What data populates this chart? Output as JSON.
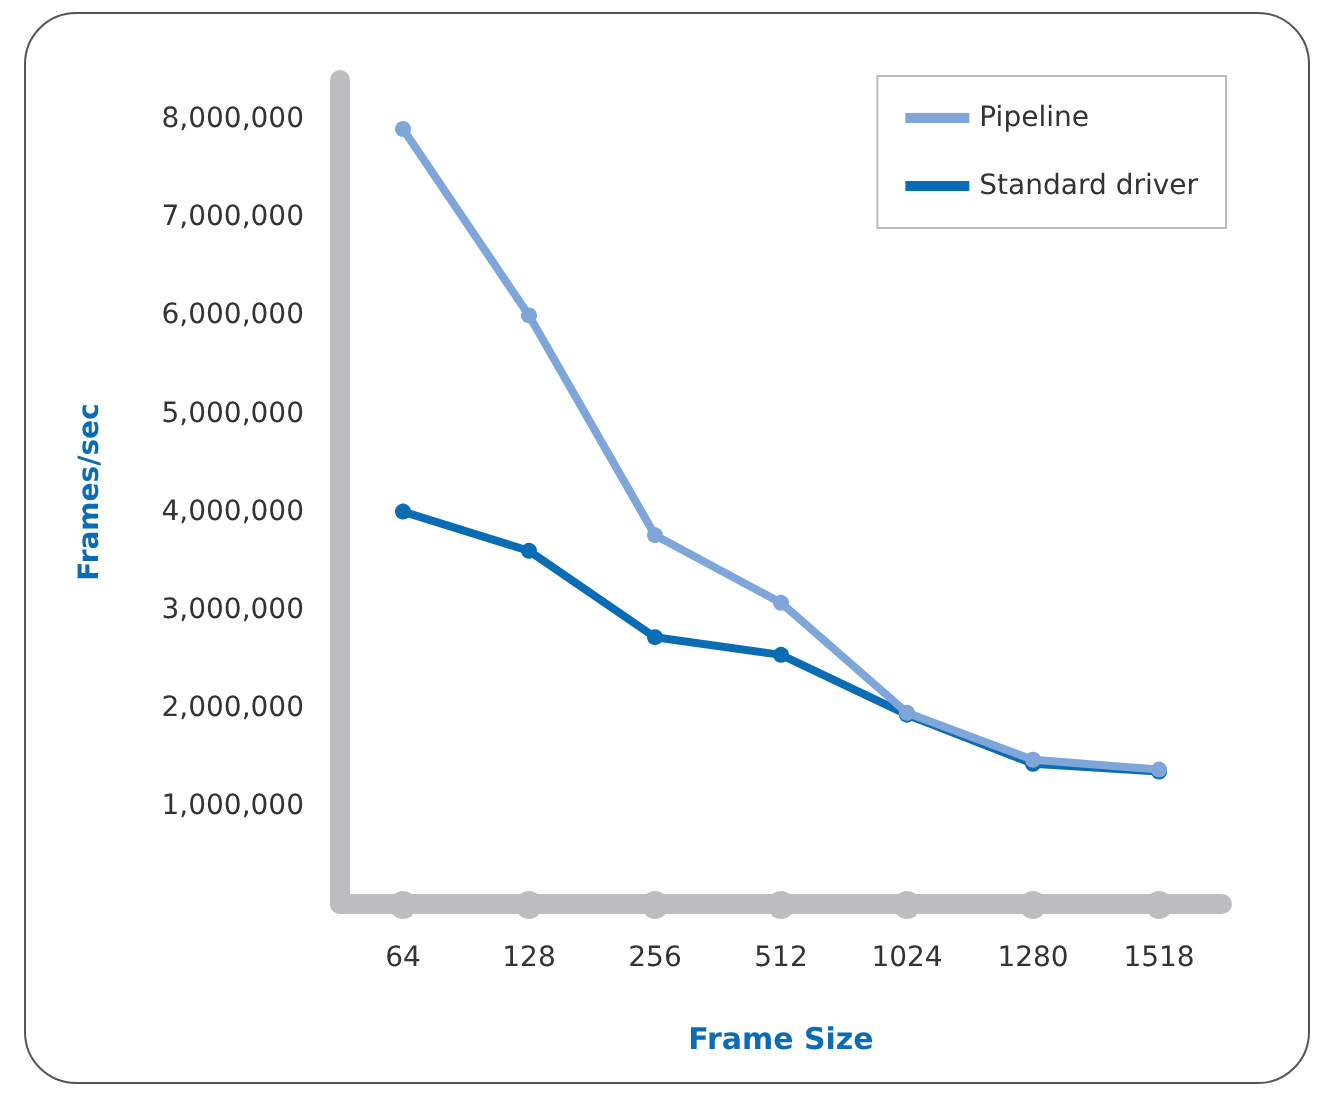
{
  "chart_data": {
    "type": "line",
    "xlabel": "Frame Size",
    "ylabel": "Frames/sec",
    "categories": [
      "64",
      "128",
      "256",
      "512",
      "1024",
      "1280",
      "1518"
    ],
    "series": [
      {
        "name": "Pipeline",
        "color": "#7fa6d9",
        "values": [
          7900000,
          6000000,
          3760000,
          3070000,
          1950000,
          1470000,
          1370000
        ]
      },
      {
        "name": "Standard driver",
        "color": "#0a6cb4",
        "values": [
          4000000,
          3600000,
          2720000,
          2540000,
          1930000,
          1430000,
          1350000
        ]
      }
    ],
    "ylim": [
      0,
      8400000
    ],
    "yticks": [
      {
        "value": 1000000,
        "label": "1,000,000"
      },
      {
        "value": 2000000,
        "label": "2,000,000"
      },
      {
        "value": 3000000,
        "label": "3,000,000"
      },
      {
        "value": 4000000,
        "label": "4,000,000"
      },
      {
        "value": 5000000,
        "label": "5,000,000"
      },
      {
        "value": 6000000,
        "label": "6,000,000"
      },
      {
        "value": 7000000,
        "label": "7,000,000"
      },
      {
        "value": 8000000,
        "label": "8,000,000"
      }
    ],
    "grid": false,
    "legend": "top right",
    "marker": "circle",
    "line_style": "solid"
  }
}
